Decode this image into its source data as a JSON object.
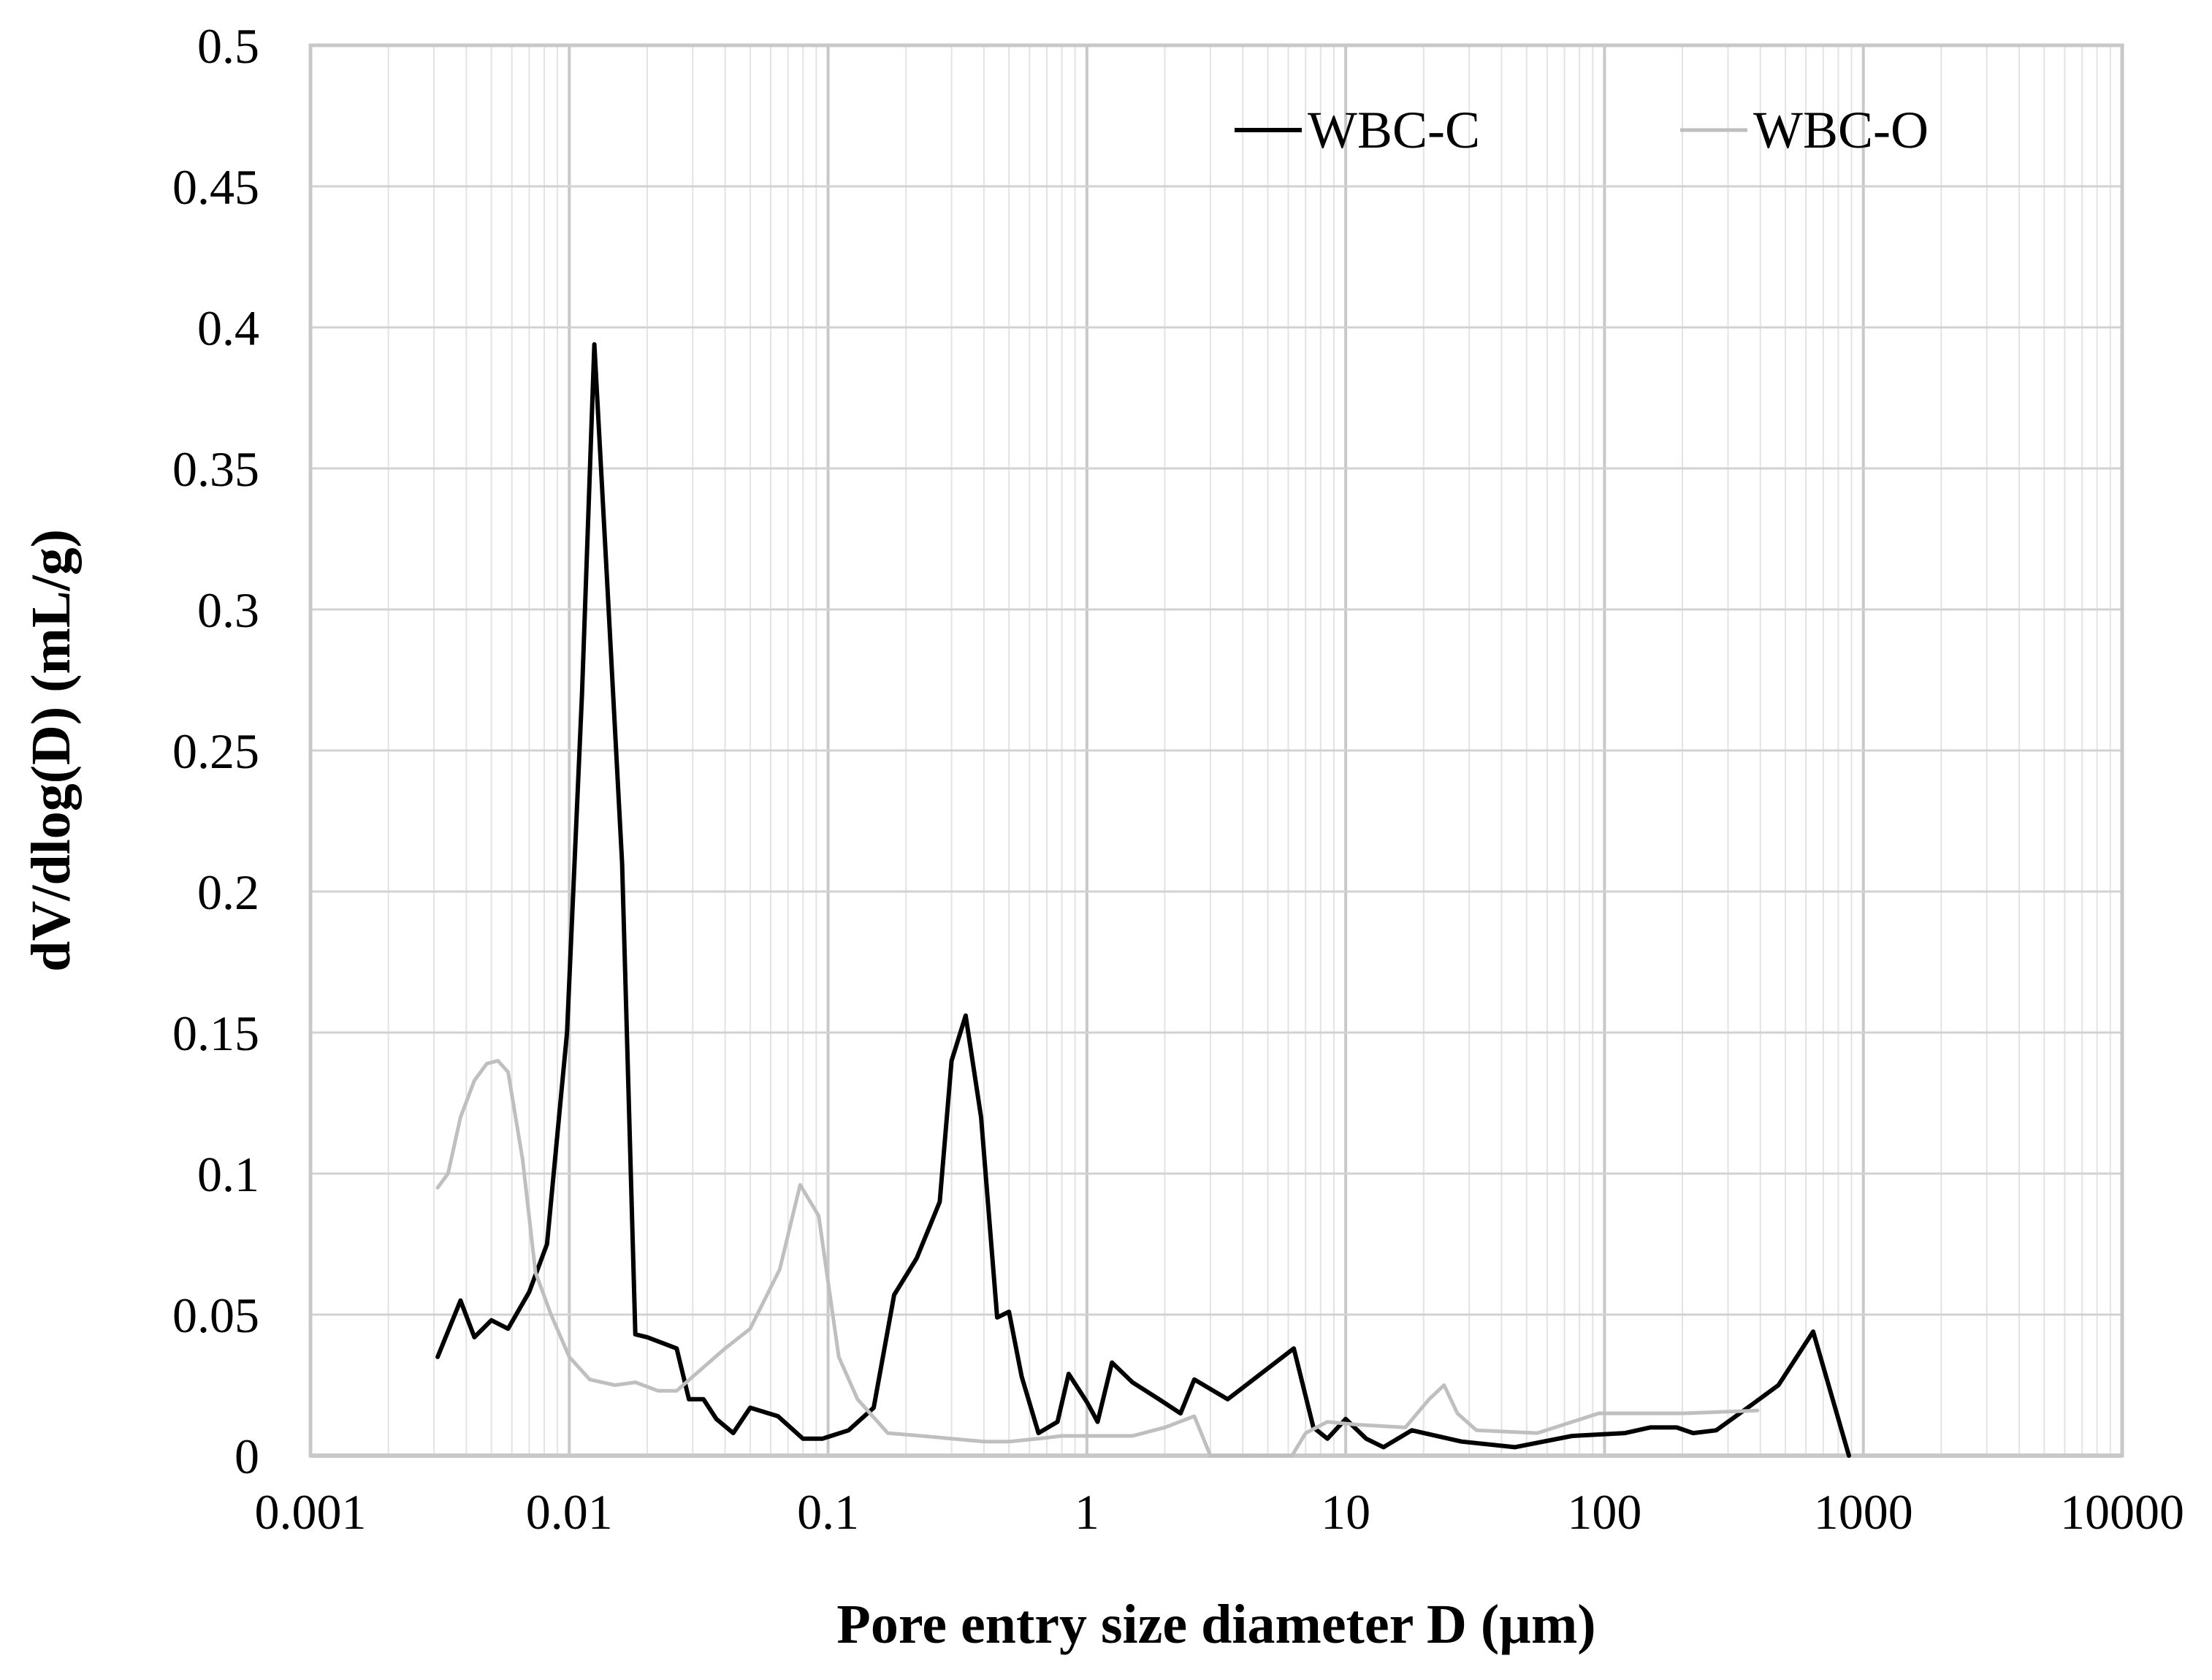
{
  "chart_data": {
    "type": "line",
    "title": "",
    "xlabel": "Pore entry size diameter D (µm)",
    "ylabel": "dV/dlog(D) (mL/g)",
    "xscale": "log",
    "xlim": [
      0.001,
      10000
    ],
    "ylim": [
      0,
      0.5
    ],
    "x_ticks": [
      0.001,
      0.01,
      0.1,
      1,
      10,
      100,
      1000,
      10000
    ],
    "x_tick_labels": [
      "0.001",
      "0.01",
      "0.1",
      "1",
      "10",
      "100",
      "1000",
      "10000"
    ],
    "y_ticks": [
      0,
      0.05,
      0.1,
      0.15,
      0.2,
      0.25,
      0.3,
      0.35,
      0.4,
      0.45,
      0.5
    ],
    "y_tick_labels": [
      "0",
      "0.05",
      "0.1",
      "0.15",
      "0.2",
      "0.25",
      "0.3",
      "0.35",
      "0.4",
      "0.45",
      "0.5"
    ],
    "grid": true,
    "legend_position": "top-right",
    "series": [
      {
        "name": "WBC-C",
        "color": "#000000",
        "points": [
          [
            0.0031,
            0.035
          ],
          [
            0.0038,
            0.055
          ],
          [
            0.0043,
            0.042
          ],
          [
            0.005,
            0.048
          ],
          [
            0.0058,
            0.045
          ],
          [
            0.007,
            0.058
          ],
          [
            0.0082,
            0.075
          ],
          [
            0.0098,
            0.15
          ],
          [
            0.0112,
            0.27
          ],
          [
            0.0125,
            0.394
          ],
          [
            0.014,
            0.31
          ],
          [
            0.016,
            0.21
          ],
          [
            0.018,
            0.043
          ],
          [
            0.02,
            0.042
          ],
          [
            0.026,
            0.038
          ],
          [
            0.029,
            0.02
          ],
          [
            0.033,
            0.02
          ],
          [
            0.037,
            0.013
          ],
          [
            0.043,
            0.008
          ],
          [
            0.05,
            0.017
          ],
          [
            0.064,
            0.014
          ],
          [
            0.08,
            0.006
          ],
          [
            0.095,
            0.006
          ],
          [
            0.12,
            0.009
          ],
          [
            0.15,
            0.017
          ],
          [
            0.18,
            0.057
          ],
          [
            0.22,
            0.07
          ],
          [
            0.27,
            0.09
          ],
          [
            0.3,
            0.14
          ],
          [
            0.34,
            0.156
          ],
          [
            0.39,
            0.12
          ],
          [
            0.45,
            0.049
          ],
          [
            0.5,
            0.051
          ],
          [
            0.56,
            0.028
          ],
          [
            0.65,
            0.008
          ],
          [
            0.77,
            0.012
          ],
          [
            0.85,
            0.029
          ],
          [
            1.0,
            0.019
          ],
          [
            1.1,
            0.012
          ],
          [
            1.25,
            0.033
          ],
          [
            1.5,
            0.026
          ],
          [
            1.9,
            0.02
          ],
          [
            2.3,
            0.015
          ],
          [
            2.6,
            0.027
          ],
          [
            3.5,
            0.02
          ],
          [
            6.3,
            0.038
          ],
          [
            7.5,
            0.01
          ],
          [
            8.5,
            0.006
          ],
          [
            10.0,
            0.013
          ],
          [
            12.0,
            0.006
          ],
          [
            14.0,
            0.003
          ],
          [
            18.0,
            0.009
          ],
          [
            28.0,
            0.005
          ],
          [
            45.0,
            0.003
          ],
          [
            75.0,
            0.007
          ],
          [
            120.0,
            0.008
          ],
          [
            150.0,
            0.01
          ],
          [
            190.0,
            0.01
          ],
          [
            220.0,
            0.008
          ],
          [
            270.0,
            0.009
          ],
          [
            370.0,
            0.018
          ],
          [
            470.0,
            0.025
          ],
          [
            640.0,
            0.044
          ],
          [
            880.0,
            0.0
          ]
        ]
      },
      {
        "name": "WBC-O",
        "color": "#bfbfbf",
        "points": [
          [
            0.0031,
            0.095
          ],
          [
            0.0034,
            0.1
          ],
          [
            0.0038,
            0.12
          ],
          [
            0.0043,
            0.133
          ],
          [
            0.0048,
            0.139
          ],
          [
            0.0053,
            0.14
          ],
          [
            0.0058,
            0.136
          ],
          [
            0.0066,
            0.105
          ],
          [
            0.0074,
            0.065
          ],
          [
            0.0085,
            0.05
          ],
          [
            0.01,
            0.035
          ],
          [
            0.012,
            0.027
          ],
          [
            0.015,
            0.025
          ],
          [
            0.018,
            0.026
          ],
          [
            0.022,
            0.023
          ],
          [
            0.026,
            0.023
          ],
          [
            0.03,
            0.028
          ],
          [
            0.04,
            0.038
          ],
          [
            0.05,
            0.045
          ],
          [
            0.065,
            0.066
          ],
          [
            0.078,
            0.096
          ],
          [
            0.092,
            0.085
          ],
          [
            0.11,
            0.035
          ],
          [
            0.13,
            0.02
          ],
          [
            0.17,
            0.008
          ],
          [
            0.23,
            0.007
          ],
          [
            0.3,
            0.006
          ],
          [
            0.4,
            0.005
          ],
          [
            0.5,
            0.005
          ],
          [
            0.65,
            0.006
          ],
          [
            0.8,
            0.007
          ],
          [
            1.0,
            0.007
          ],
          [
            1.5,
            0.007
          ],
          [
            2.0,
            0.01
          ],
          [
            2.6,
            0.014
          ],
          [
            3.0,
            0.0
          ],
          [
            6.2,
            0.0
          ],
          [
            7.0,
            0.008
          ],
          [
            8.5,
            0.012
          ],
          [
            11.0,
            0.011
          ],
          [
            17.0,
            0.01
          ],
          [
            21.0,
            0.02
          ],
          [
            24.0,
            0.025
          ],
          [
            27.0,
            0.015
          ],
          [
            32.0,
            0.009
          ],
          [
            55.0,
            0.008
          ],
          [
            95.0,
            0.015
          ],
          [
            200.0,
            0.015
          ],
          [
            390.0,
            0.016
          ]
        ]
      }
    ]
  }
}
